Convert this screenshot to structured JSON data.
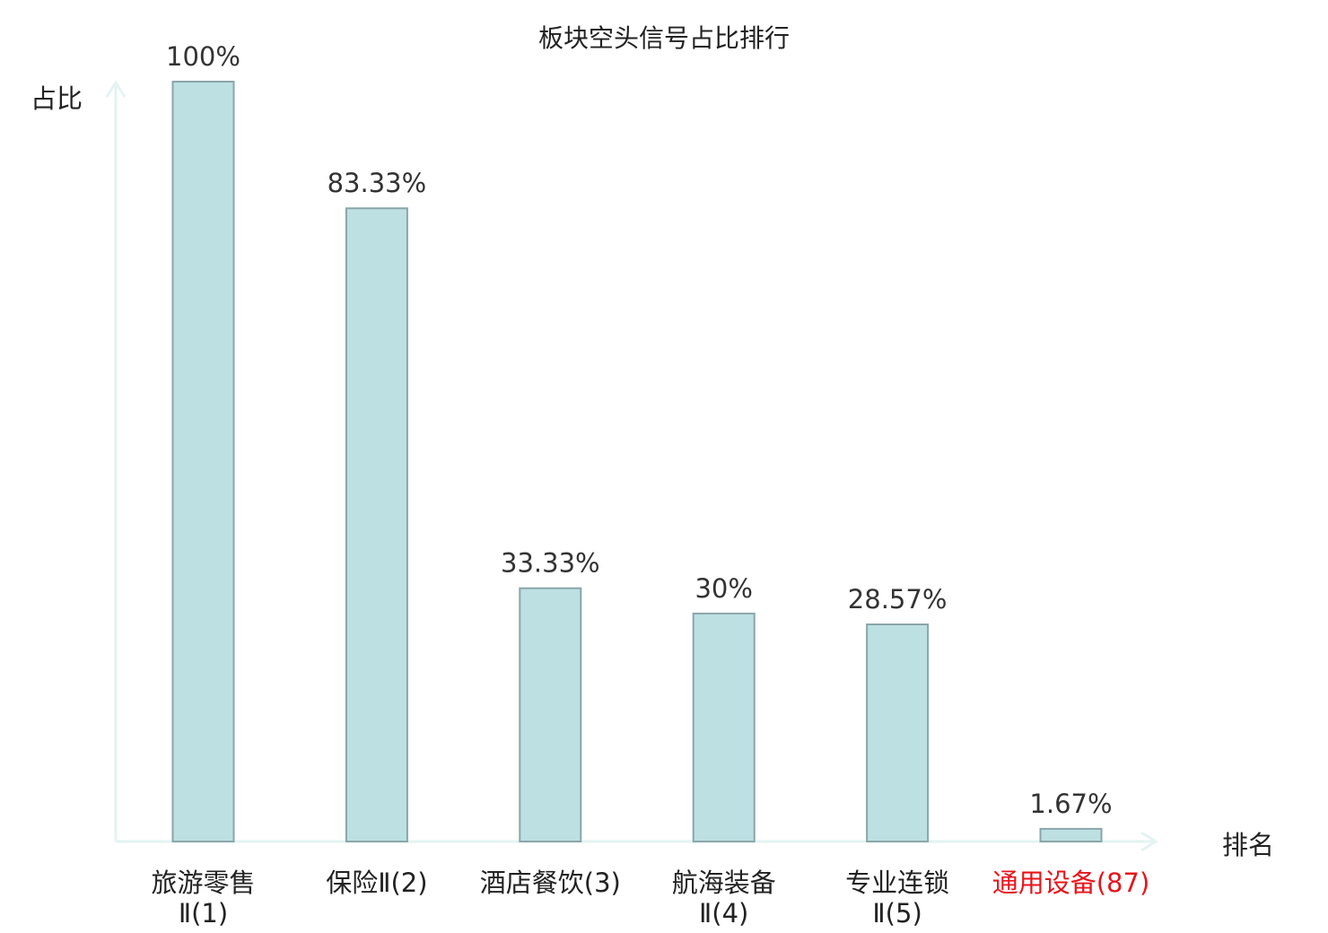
{
  "chart_data": {
    "type": "bar",
    "title": "板块空头信号占比排行",
    "ylabel": "占比",
    "xlabel": "排名",
    "ylim": [
      0,
      100
    ],
    "grid": false,
    "legend": "none",
    "value_suffix": "%",
    "bar_color": "#bde0e3",
    "bar_border_color": "#8aa6a9",
    "axis_color": "#e3f4f2",
    "highlight_color": "#e8141b",
    "categories": [
      {
        "name": "旅游零售",
        "suffix": "Ⅱ",
        "rank": "(1)",
        "lines": [
          "旅游零售",
          "Ⅱ(1)"
        ],
        "highlight": false
      },
      {
        "name": "保险",
        "suffix": "Ⅱ",
        "rank": "(2)",
        "lines": [
          "保险Ⅱ(2)"
        ],
        "highlight": false
      },
      {
        "name": "酒店餐饮",
        "suffix": "",
        "rank": "(3)",
        "lines": [
          "酒店餐饮(3)"
        ],
        "highlight": false
      },
      {
        "name": "航海装备",
        "suffix": "Ⅱ",
        "rank": "(4)",
        "lines": [
          "航海装备",
          "Ⅱ(4)"
        ],
        "highlight": false
      },
      {
        "name": "专业连锁",
        "suffix": "Ⅱ",
        "rank": "(5)",
        "lines": [
          "专业连锁",
          "Ⅱ(5)"
        ],
        "highlight": false
      },
      {
        "name": "通用设备",
        "suffix": "",
        "rank": "(87)",
        "lines": [
          "通用设备(87)"
        ],
        "highlight": true
      }
    ],
    "values": [
      100,
      83.33,
      33.33,
      30,
      28.57,
      1.67
    ],
    "value_labels": [
      "100%",
      "83.33%",
      "33.33%",
      "30%",
      "28.57%",
      "1.67%"
    ]
  }
}
